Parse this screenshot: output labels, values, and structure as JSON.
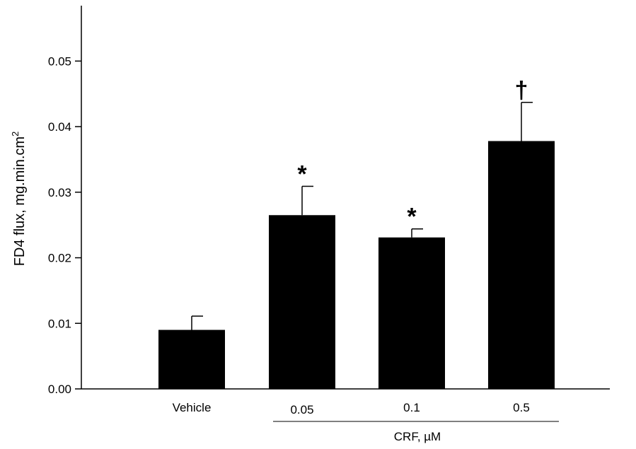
{
  "chart_data": {
    "type": "bar",
    "categories": [
      "Vehicle",
      "0.05",
      "0.1",
      "0.5"
    ],
    "values": [
      0.009,
      0.0265,
      0.0231,
      0.0378
    ],
    "errors": [
      0.0021,
      0.0044,
      0.0013,
      0.0059
    ],
    "significance": [
      "",
      "*",
      "*",
      "†"
    ],
    "xlabel": "",
    "ylabel": "FD4 flux, mg.min.cm",
    "ylabel_superscript": "2",
    "group_label": "CRF, µM",
    "ylim": [
      0,
      0.055
    ],
    "yticks": [
      "0.00",
      "0.01",
      "0.02",
      "0.03",
      "0.04",
      "0.05"
    ],
    "bar_color": "#000000",
    "grid": false,
    "legend": "none"
  }
}
